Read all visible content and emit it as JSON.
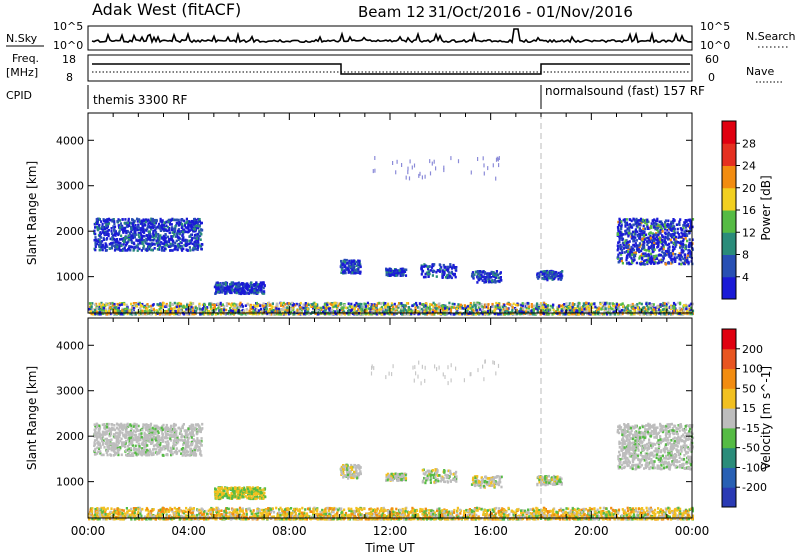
{
  "header": {
    "station": "Adak West (fitACF)",
    "beam": "Beam 12",
    "date_range": "31/Oct/2016 - 01/Nov/2016"
  },
  "strips": {
    "nsky_label": "N.Sky",
    "nsearch_label": "N.Search",
    "nsky_ticks": [
      "10^5",
      "10^0"
    ],
    "nsearch_ticks": [
      "10^5",
      "10^0"
    ],
    "freq_label_line1": "Freq.",
    "freq_label_line2": "[MHz]",
    "freq_ticks": [
      "18",
      "8"
    ],
    "nave_label": "Nave",
    "nave_ticks": [
      "60",
      "0"
    ],
    "cpid_label": "CPID",
    "cpid_first": "themis 3300 RF",
    "cpid_second": "normalsound (fast) 157 RF"
  },
  "chart_data": [
    {
      "type": "heatmap",
      "title": "",
      "ylabel": "Slant Range [km]",
      "xlabel": "",
      "ylim": [
        200,
        4600
      ],
      "yticks": [
        "1000",
        "2000",
        "3000",
        "4000"
      ],
      "xticks": [
        "00:00",
        "04:00",
        "08:00",
        "12:00",
        "16:00",
        "20:00",
        "00:00"
      ],
      "colorbar": {
        "label": "Power [dB]",
        "ticks": [
          "4",
          "8",
          "12",
          "16",
          "20",
          "24",
          "28"
        ],
        "colors": [
          "#1a1ad6",
          "#2850b4",
          "#2a8c7a",
          "#55bb44",
          "#f2d020",
          "#f28c10",
          "#e53020",
          "#e00010"
        ]
      },
      "features": [
        {
          "name": "early echo band",
          "x_hours": [
            0.2,
            4.5
          ],
          "range_km": [
            1600,
            2300
          ]
        },
        {
          "name": "mid echo",
          "x_hours": [
            5.0,
            7.0
          ],
          "range_km": [
            650,
            900
          ]
        },
        {
          "name": "morning echoes",
          "x_hours": [
            9.8,
            16.5
          ],
          "range_km": [
            900,
            1400
          ]
        },
        {
          "name": "evening echo band",
          "x_hours": [
            21.0,
            24.0
          ],
          "range_km": [
            1300,
            2300
          ]
        },
        {
          "name": "ground scatter",
          "x_hours": [
            0,
            24
          ],
          "range_km": [
            200,
            450
          ]
        }
      ]
    },
    {
      "type": "heatmap",
      "title": "",
      "ylabel": "Slant Range [km]",
      "xlabel": "Time UT",
      "ylim": [
        200,
        4600
      ],
      "yticks": [
        "1000",
        "2000",
        "3000",
        "4000"
      ],
      "xticks": [
        "00:00",
        "04:00",
        "08:00",
        "12:00",
        "16:00",
        "20:00",
        "00:00"
      ],
      "colorbar": {
        "label": "Velocity [m s^-1]",
        "ticks": [
          "200",
          "100",
          "50",
          "15",
          "-15",
          "-50",
          "-100",
          "-200"
        ],
        "colors": [
          "#2a3ab4",
          "#2860b4",
          "#2a8c7a",
          "#55bb44",
          "#bdbdbd",
          "#f2c020",
          "#f28c10",
          "#e85520",
          "#e00010"
        ]
      },
      "features": [
        {
          "name": "early echo band",
          "x_hours": [
            0.2,
            4.5
          ],
          "range_km": [
            1600,
            2300
          ]
        },
        {
          "name": "mid echo",
          "x_hours": [
            5.0,
            7.0
          ],
          "range_km": [
            650,
            900
          ]
        },
        {
          "name": "morning echoes",
          "x_hours": [
            9.8,
            16.5
          ],
          "range_km": [
            900,
            1400
          ]
        },
        {
          "name": "evening echo band",
          "x_hours": [
            21.0,
            24.0
          ],
          "range_km": [
            1300,
            2300
          ]
        },
        {
          "name": "ground scatter",
          "x_hours": [
            0,
            24
          ],
          "range_km": [
            200,
            450
          ]
        }
      ]
    }
  ]
}
